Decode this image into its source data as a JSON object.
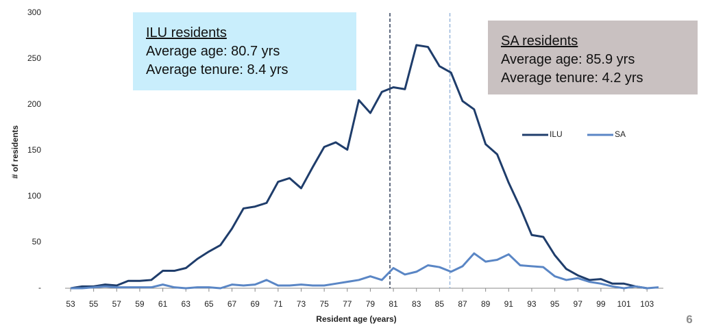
{
  "chart_data": {
    "type": "line",
    "x_label": "Resident age (years)",
    "y_label": "# of residents",
    "x": [
      53,
      54,
      55,
      56,
      57,
      58,
      59,
      60,
      61,
      62,
      63,
      64,
      65,
      66,
      67,
      68,
      69,
      70,
      71,
      72,
      73,
      74,
      75,
      76,
      77,
      78,
      79,
      80,
      81,
      82,
      83,
      84,
      85,
      86,
      87,
      88,
      89,
      90,
      91,
      92,
      93,
      94,
      95,
      96,
      97,
      98,
      99,
      100,
      101,
      102,
      103,
      104
    ],
    "series": [
      {
        "name": "ILU",
        "color": "#1f3d6b",
        "values": [
          0,
          2,
          2,
          4,
          3,
          8,
          8,
          9,
          19,
          19,
          22,
          32,
          40,
          47,
          65,
          87,
          89,
          93,
          116,
          120,
          109,
          132,
          154,
          159,
          151,
          205,
          191,
          214,
          219,
          217,
          265,
          263,
          242,
          235,
          204,
          195,
          157,
          146,
          115,
          88,
          58,
          56,
          36,
          21,
          14,
          9,
          10,
          5,
          5,
          2,
          0,
          null
        ]
      },
      {
        "name": "SA",
        "color": "#5a86c5",
        "values": [
          0,
          0,
          1,
          2,
          1,
          1,
          1,
          1,
          4,
          1,
          0,
          1,
          1,
          0,
          4,
          3,
          4,
          9,
          3,
          3,
          4,
          3,
          3,
          5,
          7,
          9,
          13,
          9,
          22,
          15,
          18,
          25,
          23,
          18,
          24,
          38,
          29,
          31,
          37,
          25,
          24,
          23,
          13,
          9,
          11,
          7,
          5,
          2,
          0,
          2,
          0,
          1
        ]
      }
    ],
    "xlim": [
      53,
      104
    ],
    "xticks": [
      53,
      55,
      57,
      59,
      61,
      63,
      65,
      67,
      69,
      71,
      73,
      75,
      77,
      79,
      81,
      83,
      85,
      87,
      89,
      91,
      93,
      95,
      97,
      99,
      101,
      103
    ],
    "ylim": [
      0,
      300
    ],
    "yticks": [
      {
        "value": 0,
        "label": "-"
      },
      50,
      100,
      150,
      200,
      250,
      300
    ],
    "reference_lines": [
      {
        "x": 80.7,
        "color": "#2b3a55"
      },
      {
        "x": 85.9,
        "color": "#9ab8dc"
      }
    ],
    "annotations": [
      {
        "lines": [
          "ILU residents",
          "Average age: 80.7 yrs",
          "Average tenure: 8.4 yrs"
        ],
        "color": "#c9eefc"
      },
      {
        "lines": [
          "SA residents",
          "Average age: 85.9 yrs",
          "Average tenure: 4.2 yrs"
        ],
        "color": "#c9c1c1"
      }
    ],
    "legend": "right",
    "page_number": "6"
  }
}
